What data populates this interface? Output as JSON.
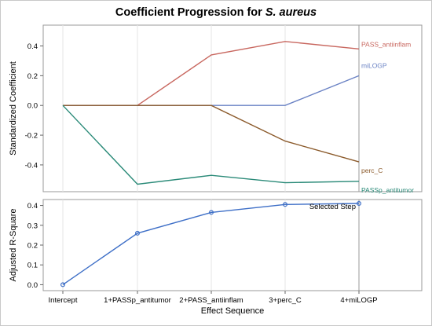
{
  "chart_data": [
    {
      "type": "line",
      "title_prefix": "Coefficient Progression for ",
      "title_species": "S. aureus",
      "ylabel": "Standardized Coefficient",
      "ylim": [
        -0.58,
        0.54
      ],
      "yticks": [
        0.4,
        0.2,
        0.0,
        -0.2,
        -0.4
      ],
      "ytick_labels": [
        "0.4",
        "0.2",
        "0.0",
        "-0.2",
        "-0.4"
      ],
      "categories": [
        "Intercept",
        "1+PASSp_antitumor",
        "2+PASS_antiinflam",
        "3+perc_C",
        "4+miLOGP"
      ],
      "series": [
        {
          "name": "PASS_antiinflam",
          "color": "#c8675f",
          "values": [
            0.0,
            0.0,
            0.34,
            0.43,
            0.38
          ]
        },
        {
          "name": "miLOGP",
          "color": "#6a82c4",
          "values": [
            0.0,
            0.0,
            0.0,
            0.0,
            0.2
          ]
        },
        {
          "name": "perc_C",
          "color": "#8b5a2b",
          "values": [
            0.0,
            0.0,
            0.0,
            -0.24,
            -0.38
          ]
        },
        {
          "name": "PASSp_antitumor",
          "color": "#2a8a78",
          "values": [
            0.0,
            -0.53,
            -0.47,
            -0.52,
            -0.51
          ]
        }
      ]
    },
    {
      "type": "line",
      "ylabel": "Adjusted R-Square",
      "xlabel": "Effect Sequence",
      "ylim": [
        -0.03,
        0.43
      ],
      "yticks": [
        0.0,
        0.1,
        0.2,
        0.3,
        0.4
      ],
      "ytick_labels": [
        "0.0",
        "0.1",
        "0.2",
        "0.3",
        "0.4"
      ],
      "categories": [
        "Intercept",
        "1+PASSp_antitumor",
        "2+PASS_antiinflam",
        "3+perc_C",
        "4+miLOGP"
      ],
      "values": [
        0.0,
        0.26,
        0.365,
        0.405,
        0.41
      ],
      "color": "#3e6fc7",
      "selected_index": 4,
      "selected_label": "Selected Step"
    }
  ]
}
